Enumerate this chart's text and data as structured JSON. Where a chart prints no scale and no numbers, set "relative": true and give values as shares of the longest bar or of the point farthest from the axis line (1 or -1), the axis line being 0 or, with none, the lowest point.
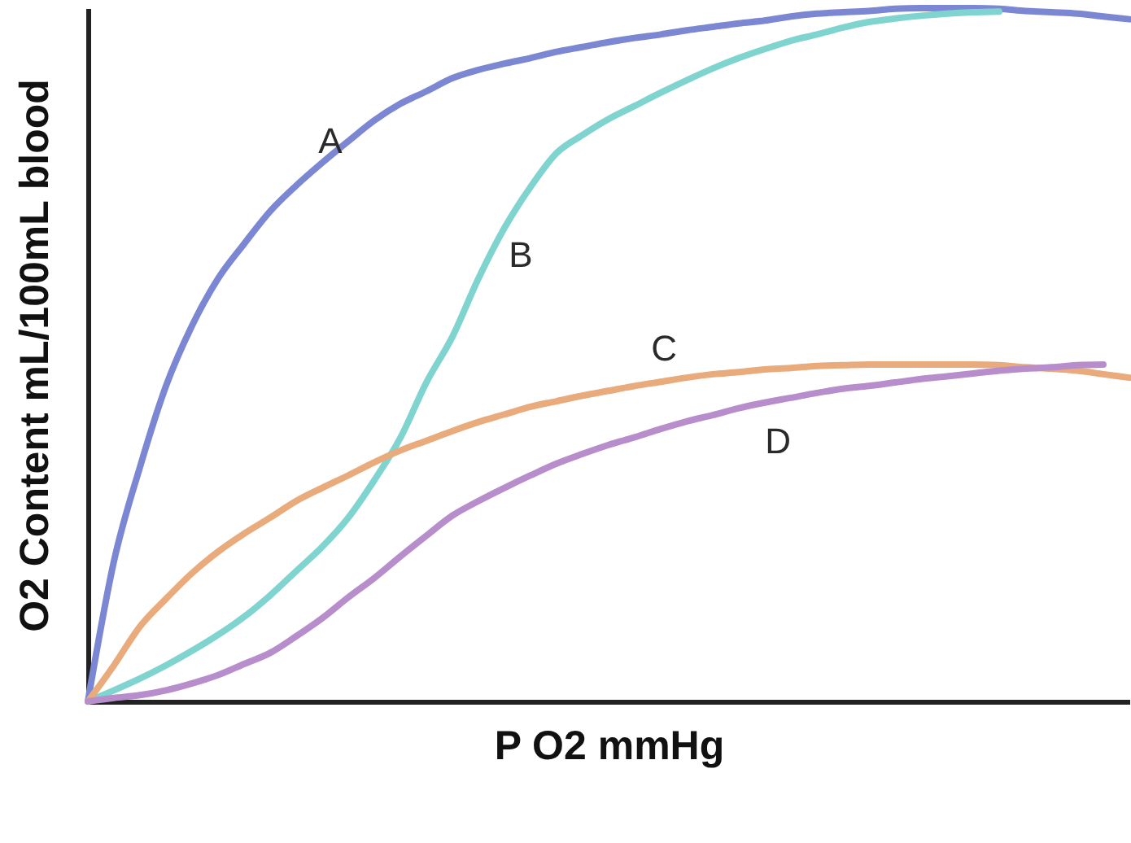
{
  "chart_data": {
    "type": "line",
    "xlabel": "P O2 mmHg",
    "ylabel": "O2 Content mL/100mL blood",
    "relative": true,
    "tick_labels": false,
    "categories": [
      null,
      null,
      null,
      null,
      null,
      null,
      null,
      null,
      null,
      null,
      null,
      null,
      null,
      null,
      null,
      null,
      null,
      null,
      null,
      null,
      null,
      null,
      null,
      null,
      null,
      null,
      null,
      null,
      null,
      null,
      null,
      null,
      null,
      null,
      null,
      null,
      null,
      null,
      null,
      null,
      null
    ],
    "series": [
      {
        "name": "A",
        "color": "#7b87d3",
        "values": [
          0,
          0.202,
          0.338,
          0.455,
          0.542,
          0.61,
          0.66,
          0.707,
          0.744,
          0.777,
          0.808,
          0.838,
          0.862,
          0.88,
          0.899,
          0.911,
          0.92,
          0.928,
          0.937,
          0.944,
          0.951,
          0.957,
          0.962,
          0.968,
          0.973,
          0.978,
          0.982,
          0.988,
          0.992,
          0.994,
          0.996,
          0.999,
          1.0,
          1.0,
          1.0,
          0.999,
          0.996,
          0.994,
          0.992,
          0.988,
          0.984
        ]
      },
      {
        "name": "B",
        "color": "#80d4d0",
        "values": [
          0,
          0.016,
          0.033,
          0.052,
          0.073,
          0.096,
          0.122,
          0.153,
          0.188,
          0.223,
          0.265,
          0.319,
          0.38,
          0.46,
          0.526,
          0.61,
          0.683,
          0.742,
          0.791,
          0.817,
          0.84,
          0.859,
          0.878,
          0.896,
          0.913,
          0.928,
          0.941,
          0.953,
          0.962,
          0.972,
          0.98,
          0.985,
          0.989,
          0.992,
          0.994,
          0.995,
          null,
          null,
          null,
          null,
          null
        ]
      },
      {
        "name": "C",
        "color": "#e9aa7c",
        "values": [
          0,
          0.052,
          0.108,
          0.148,
          0.185,
          0.216,
          0.242,
          0.265,
          0.289,
          0.308,
          0.326,
          0.345,
          0.362,
          0.376,
          0.39,
          0.403,
          0.414,
          0.425,
          0.433,
          0.441,
          0.448,
          0.455,
          0.461,
          0.467,
          0.472,
          0.475,
          0.479,
          0.481,
          0.484,
          0.485,
          0.486,
          0.486,
          0.486,
          0.486,
          0.486,
          0.485,
          0.482,
          0.48,
          0.477,
          0.472,
          0.467
        ]
      },
      {
        "name": "D",
        "color": "#b88dcc",
        "values": [
          0,
          0.005,
          0.009,
          0.016,
          0.026,
          0.038,
          0.054,
          0.07,
          0.094,
          0.12,
          0.15,
          0.178,
          0.209,
          0.239,
          0.268,
          0.289,
          0.308,
          0.326,
          0.343,
          0.357,
          0.37,
          0.381,
          0.393,
          0.404,
          0.413,
          0.423,
          0.431,
          0.438,
          0.445,
          0.451,
          0.455,
          0.46,
          0.465,
          0.469,
          0.473,
          0.477,
          0.48,
          0.482,
          0.485,
          0.486,
          null
        ]
      }
    ]
  }
}
